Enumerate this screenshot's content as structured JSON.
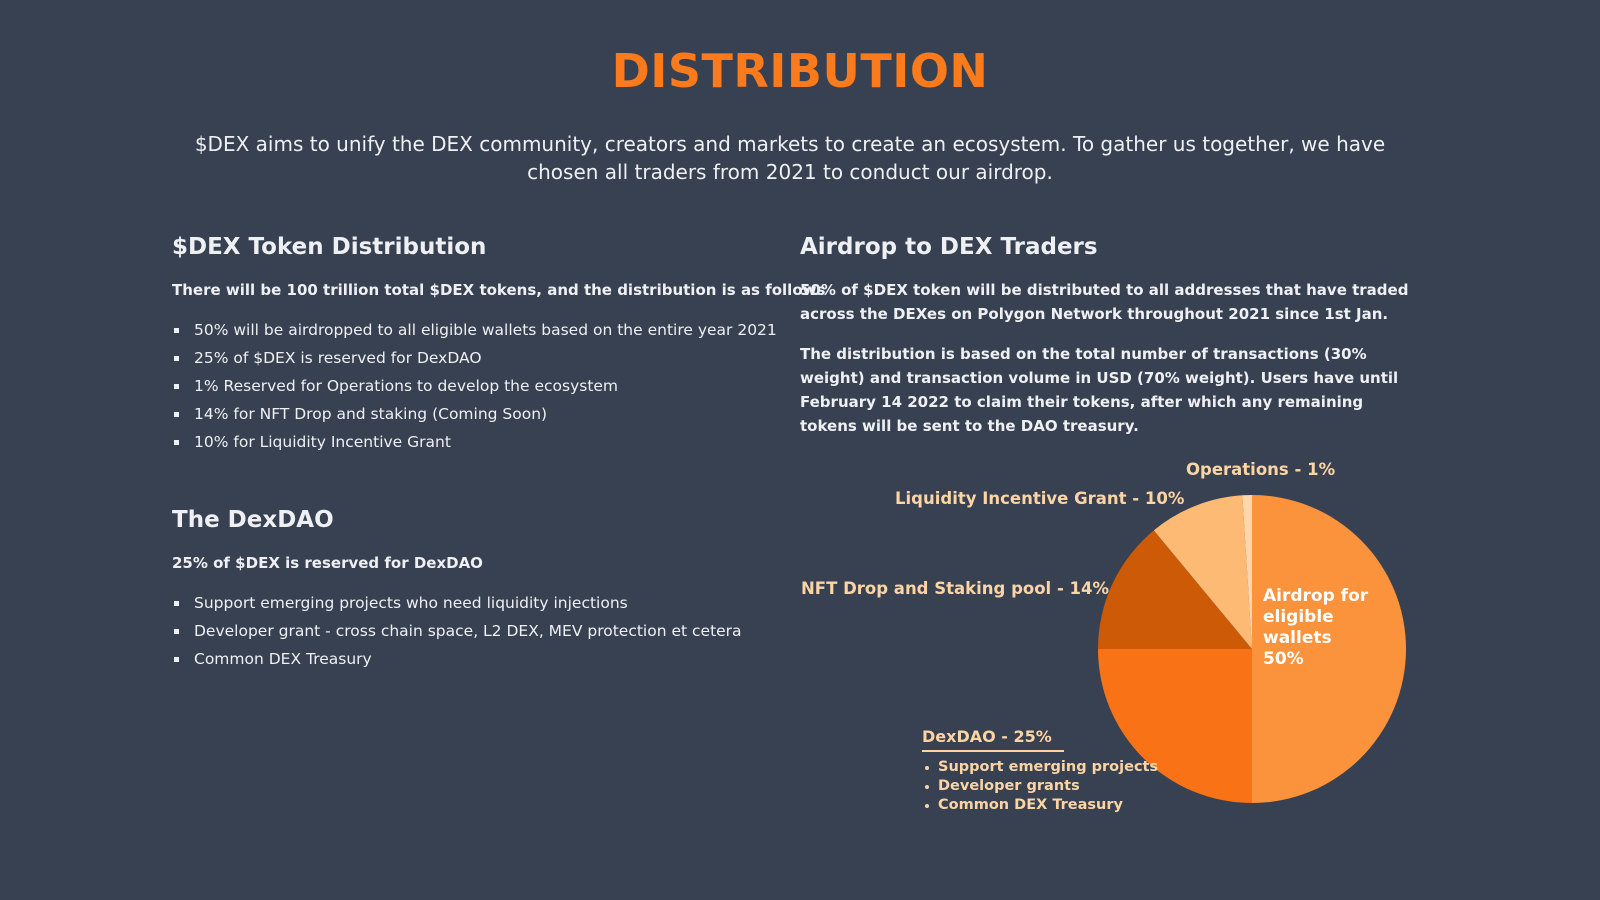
{
  "header": {
    "title": "DISTRIBUTION",
    "intro": "$DEX aims to unify the DEX community, creators and markets to create an ecosystem. To gather us together, we have chosen all traders from 2021 to conduct our airdrop."
  },
  "token_distribution": {
    "title": "$DEX Token Distribution",
    "lead": "There will be 100 trillion total $DEX tokens, and the distribution is as follows",
    "items": [
      "50% will be airdropped to all eligible wallets based on the entire year 2021",
      "25% of $DEX is reserved for DexDAO",
      "1% Reserved for Operations to develop the ecosystem",
      "14% for NFT Drop and staking (Coming Soon)",
      "10% for Liquidity Incentive Grant"
    ]
  },
  "dexdao": {
    "title": "The DexDAO",
    "lead": "25% of $DEX is reserved for DexDAO",
    "items": [
      "Support emerging projects who need liquidity injections",
      "Developer grant - cross chain space, L2 DEX, MEV protection et cetera",
      "Common DEX Treasury"
    ]
  },
  "airdrop": {
    "title": "Airdrop to DEX Traders",
    "para1": "50% of $DEX token will be distributed to all addresses that have traded across the DEXes on Polygon Network throughout 2021 since 1st Jan.",
    "para2": "The distribution is based on the total number of transactions (30% weight) and transaction volume in USD (70% weight). Users have until February 14 2022 to claim their tokens, after which any remaining tokens will be sent to the DAO treasury."
  },
  "chart_data": {
    "type": "pie",
    "title": "",
    "slices": [
      {
        "label": "Airdrop for eligible wallets 50%",
        "value": 50,
        "color": "#fb923c"
      },
      {
        "label": "DexDAO - 25%",
        "value": 25,
        "color": "#f97316"
      },
      {
        "label": "NFT Drop and Staking pool - 14%",
        "value": 14,
        "color": "#cc5a07"
      },
      {
        "label": "Liquidity Incentive Grant - 10%",
        "value": 10,
        "color": "#fdba74"
      },
      {
        "label": "Operations - 1%",
        "value": 1,
        "color": "#fed7aa"
      }
    ],
    "inside_label_lines": [
      "Airdrop for",
      "eligible",
      "wallets",
      "50%"
    ],
    "dao_callout": {
      "title": "DexDAO - 25%",
      "items": [
        "Support emerging projects",
        "Developer grants",
        "Common DEX Treasury"
      ]
    },
    "label_color": "#fdd4a4"
  },
  "colors": {
    "background": "#374151",
    "accent": "#fb7a1c",
    "text": "#eef0f3"
  }
}
